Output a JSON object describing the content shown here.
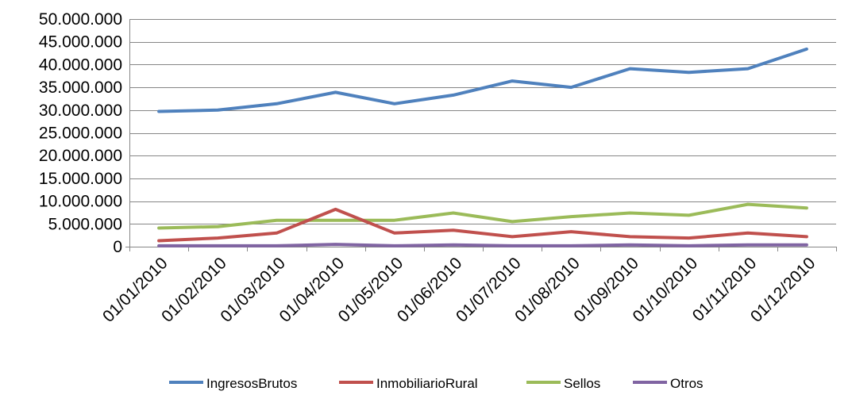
{
  "chart_data": {
    "type": "line",
    "categories": [
      "01/01/2010",
      "01/02/2010",
      "01/03/2010",
      "01/04/2010",
      "01/05/2010",
      "01/06/2010",
      "01/07/2010",
      "01/08/2010",
      "01/09/2010",
      "01/10/2010",
      "01/11/2010",
      "01/12/2010"
    ],
    "ylim": [
      0,
      50000000
    ],
    "yticks": [
      0,
      5000000,
      10000000,
      15000000,
      20000000,
      25000000,
      30000000,
      35000000,
      40000000,
      45000000,
      50000000
    ],
    "ytick_labels": [
      "0",
      "5.000.000",
      "10.000.000",
      "15.000.000",
      "20.000.000",
      "25.000.000",
      "30.000.000",
      "35.000.000",
      "40.000.000",
      "45.000.000",
      "50.000.000"
    ],
    "grid": true,
    "legend_position": "bottom",
    "series": [
      {
        "name": "IngresosBrutos",
        "color": "#4F81BD",
        "values": [
          29700000,
          30000000,
          31400000,
          33900000,
          31400000,
          33300000,
          36400000,
          35000000,
          39100000,
          38300000,
          39100000,
          43400000
        ]
      },
      {
        "name": "InmobiliarioRural",
        "color": "#C0504D",
        "values": [
          1300000,
          1900000,
          3000000,
          8200000,
          3000000,
          3600000,
          2200000,
          3300000,
          2200000,
          1900000,
          3000000,
          2200000
        ]
      },
      {
        "name": "Sellos",
        "color": "#9BBB59",
        "values": [
          4100000,
          4400000,
          5800000,
          5800000,
          5800000,
          7400000,
          5500000,
          6600000,
          7400000,
          6900000,
          9300000,
          8500000
        ]
      },
      {
        "name": "Otros",
        "color": "#8064A2",
        "values": [
          200000,
          200000,
          200000,
          500000,
          200000,
          400000,
          200000,
          200000,
          400000,
          200000,
          400000,
          400000
        ]
      }
    ]
  }
}
